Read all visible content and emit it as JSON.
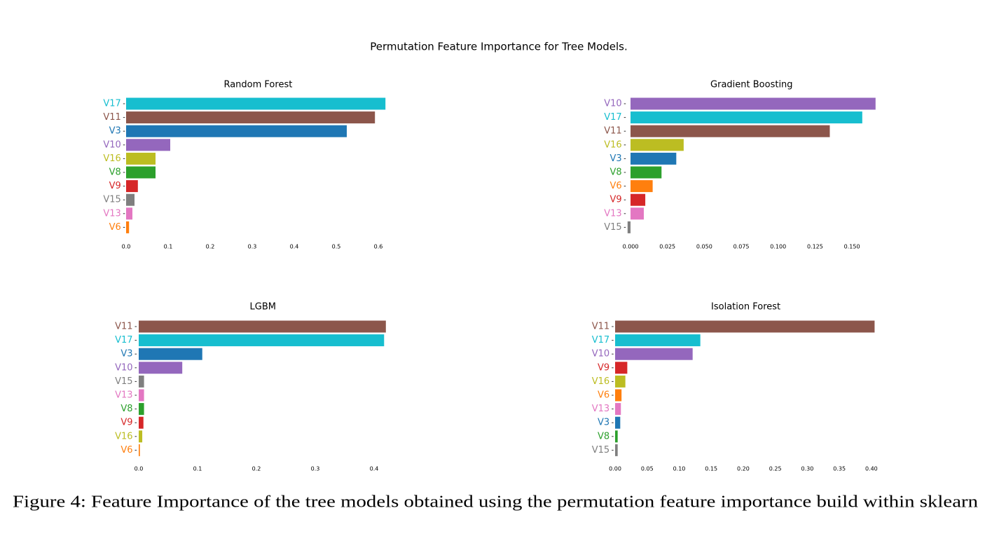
{
  "title": "Permutation Feature Importance for Tree Models.",
  "caption": "Figure 4: Feature Importance of the tree models obtained using the permutation feature importance build within sklearn",
  "chart_data": [
    {
      "type": "barh",
      "title": "Random Forest",
      "categories": [
        "V17",
        "V11",
        "V3",
        "V10",
        "V16",
        "V8",
        "V9",
        "V15",
        "V13",
        "V6"
      ],
      "values": [
        0.617,
        0.592,
        0.525,
        0.105,
        0.07,
        0.07,
        0.028,
        0.02,
        0.015,
        0.007
      ],
      "colors": [
        "#17becf",
        "#8c564b",
        "#1f77b4",
        "#9467bd",
        "#bcbd22",
        "#2ca02c",
        "#d62728",
        "#7f7f7f",
        "#e377c2",
        "#ff7f0e"
      ],
      "xlim": [
        -0.002,
        0.63
      ],
      "xticks": [
        {
          "value": 0,
          "label": "0.0"
        },
        0.1,
        0.2,
        0.3,
        0.4,
        0.5,
        0.6
      ]
    },
    {
      "type": "barh",
      "title": "Gradient Boosting",
      "categories": [
        "V10",
        "V17",
        "V11",
        "V16",
        "V3",
        "V8",
        "V6",
        "V9",
        "V13",
        "V15"
      ],
      "values": [
        0.166,
        0.157,
        0.135,
        0.036,
        0.031,
        0.021,
        0.015,
        0.01,
        0.009,
        -0.002
      ],
      "colors": [
        "#9467bd",
        "#17becf",
        "#8c564b",
        "#bcbd22",
        "#1f77b4",
        "#2ca02c",
        "#ff7f0e",
        "#d62728",
        "#e377c2",
        "#7f7f7f"
      ],
      "xlim": [
        -0.003,
        0.167
      ],
      "xticks": [
        {
          "value": 0,
          "label": "0.000"
        },
        0.025,
        {
          "value": 0.05,
          "label": "0.050"
        },
        0.075,
        {
          "value": 0.1,
          "label": "0.100"
        },
        0.125,
        {
          "value": 0.15,
          "label": "0.150"
        }
      ]
    },
    {
      "type": "barh",
      "title": "LGBM",
      "categories": [
        "V11",
        "V17",
        "V3",
        "V10",
        "V15",
        "V13",
        "V8",
        "V9",
        "V16",
        "V6"
      ],
      "values": [
        0.42,
        0.417,
        0.108,
        0.074,
        0.009,
        0.009,
        0.009,
        0.008,
        0.006,
        0.002
      ],
      "colors": [
        "#8c564b",
        "#17becf",
        "#1f77b4",
        "#9467bd",
        "#7f7f7f",
        "#e377c2",
        "#2ca02c",
        "#d62728",
        "#bcbd22",
        "#ff7f0e"
      ],
      "xlim": [
        -0.003,
        0.425
      ],
      "xticks": [
        {
          "value": 0,
          "label": "0.0"
        },
        0.1,
        0.2,
        0.3,
        0.4
      ]
    },
    {
      "type": "barh",
      "title": "Isolation Forest",
      "categories": [
        "V11",
        "V17",
        "V10",
        "V9",
        "V16",
        "V6",
        "V13",
        "V3",
        "V8",
        "V15"
      ],
      "values": [
        0.405,
        0.133,
        0.121,
        0.019,
        0.016,
        0.01,
        0.009,
        0.008,
        0.004,
        0.004
      ],
      "colors": [
        "#8c564b",
        "#17becf",
        "#9467bd",
        "#d62728",
        "#bcbd22",
        "#ff7f0e",
        "#e377c2",
        "#1f77b4",
        "#2ca02c",
        "#7f7f7f"
      ],
      "xlim": [
        -0.002,
        0.41
      ],
      "xticks": [
        {
          "value": 0,
          "label": "0.00"
        },
        0.05,
        {
          "value": 0.1,
          "label": "0.10"
        },
        0.15,
        {
          "value": 0.2,
          "label": "0.20"
        },
        0.25,
        {
          "value": 0.3,
          "label": "0.30"
        },
        0.35,
        {
          "value": 0.4,
          "label": "0.40"
        }
      ]
    }
  ]
}
